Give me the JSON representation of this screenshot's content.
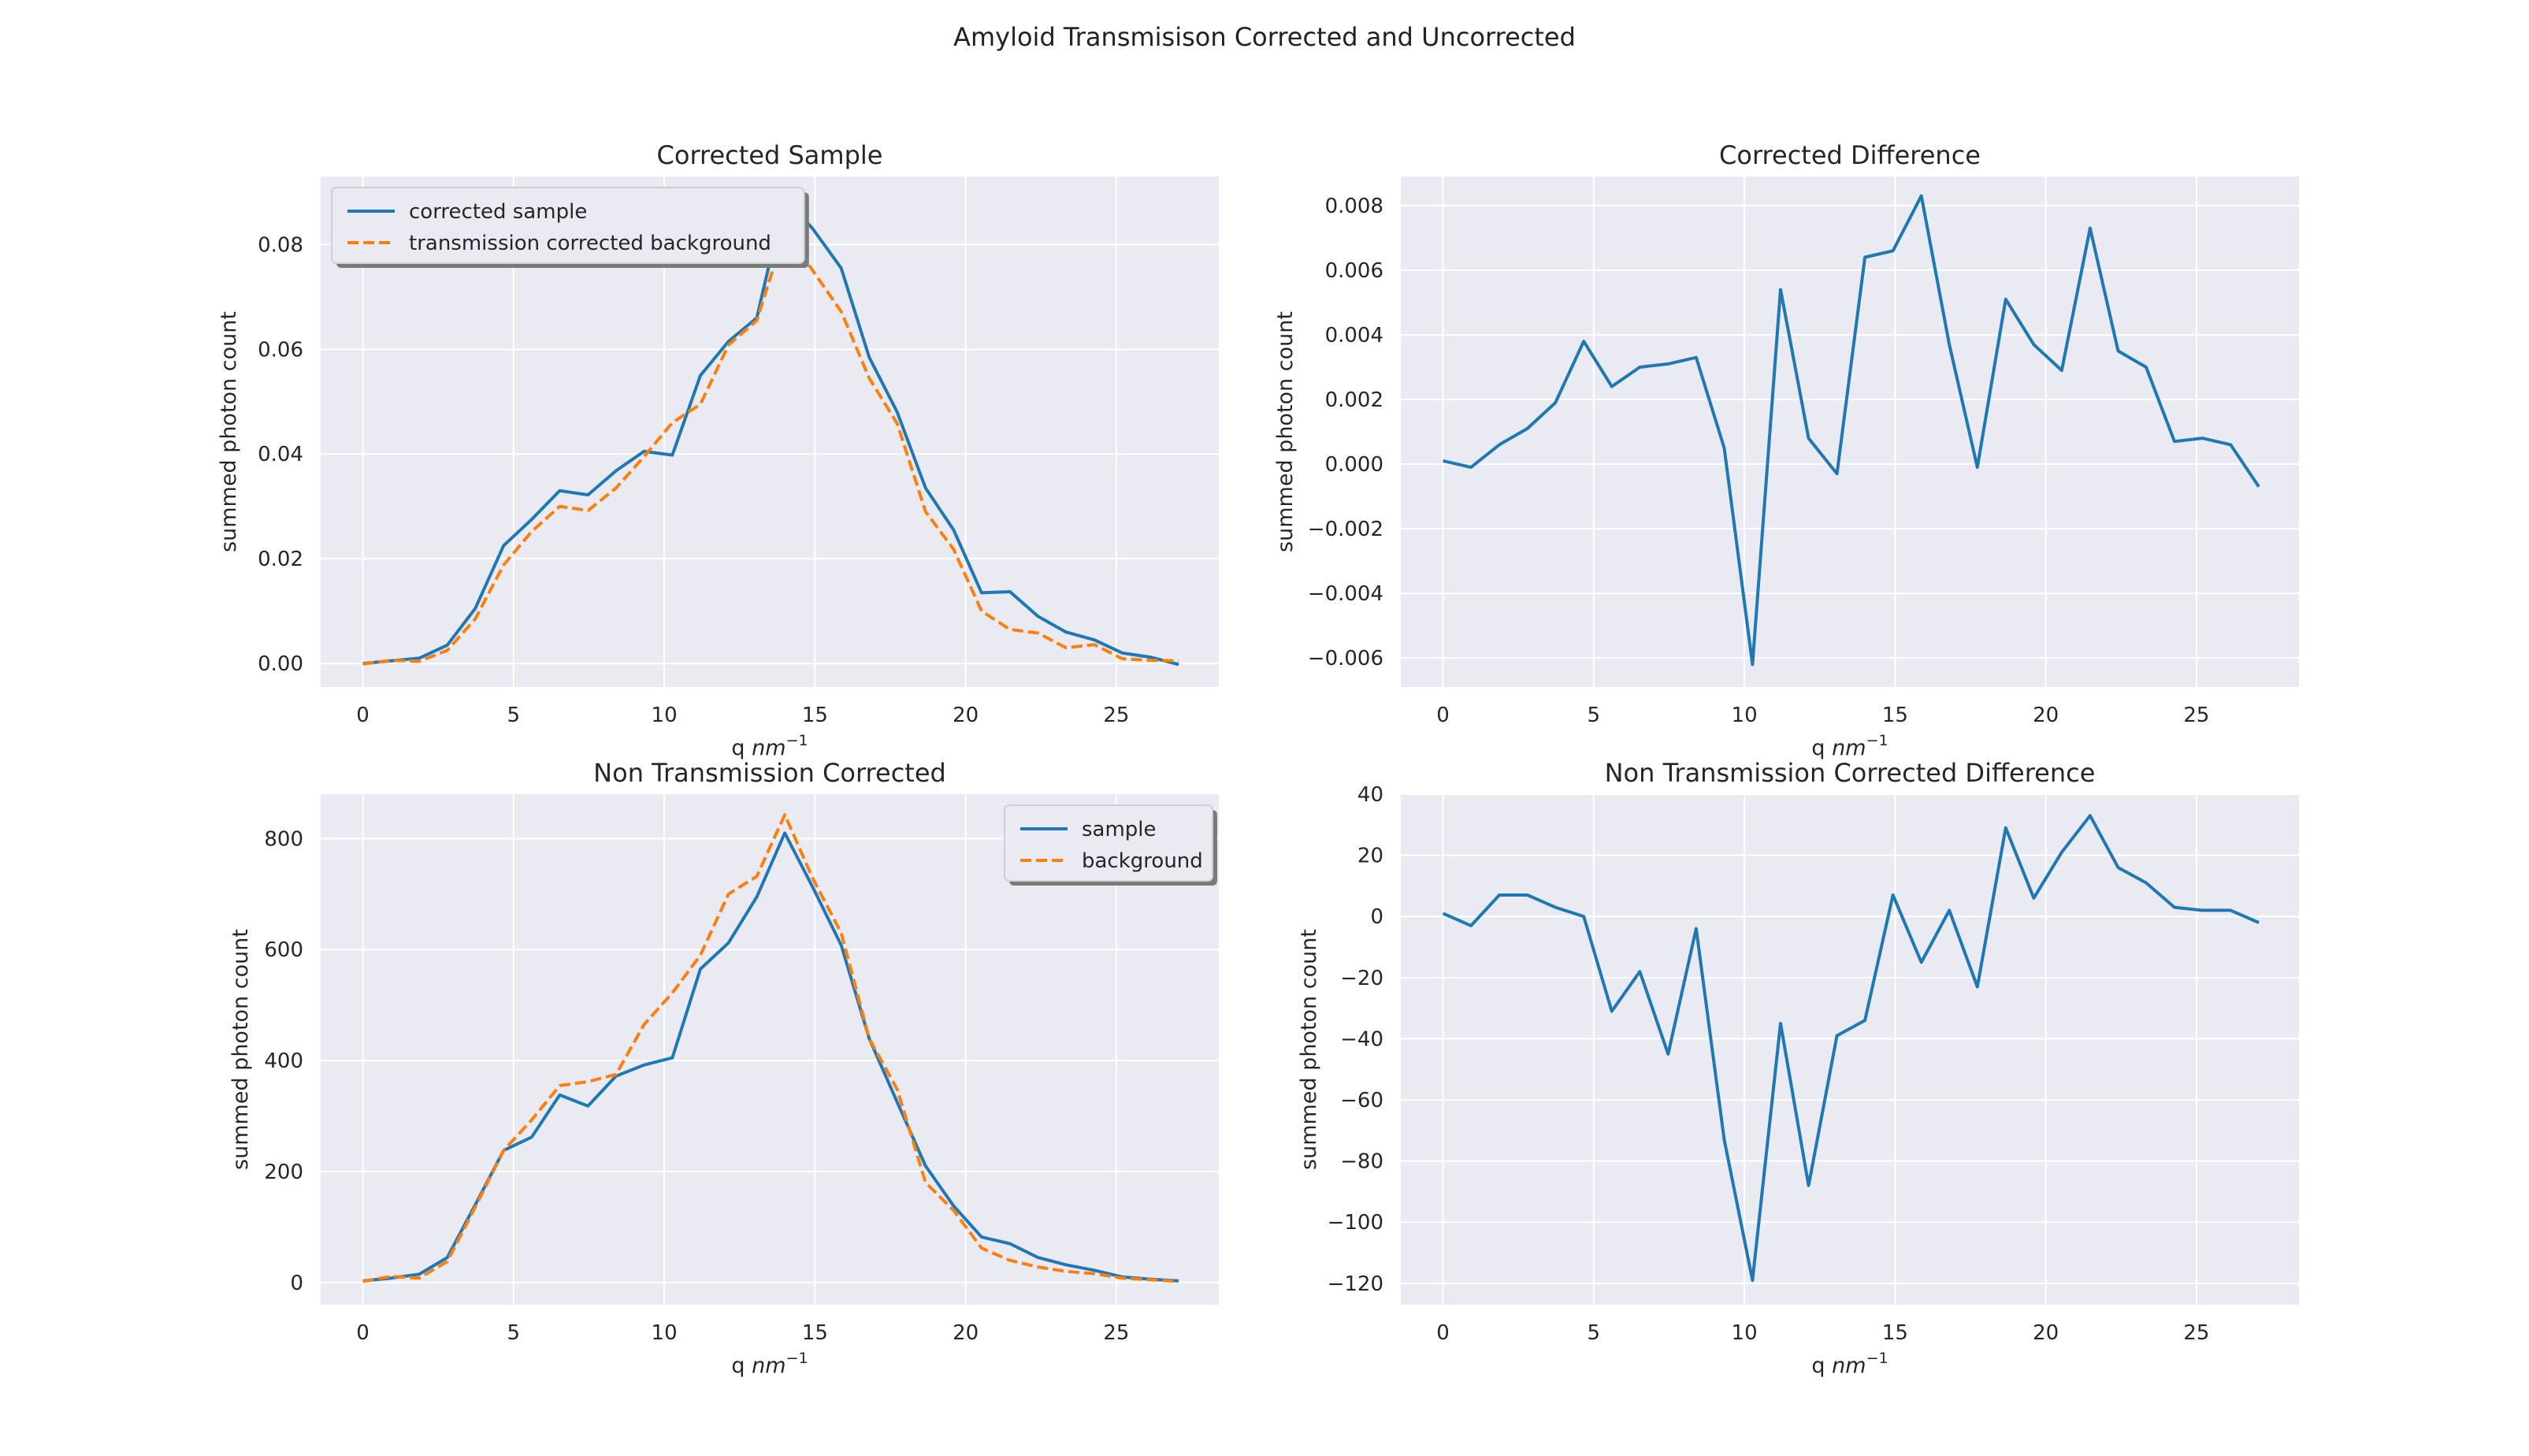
{
  "figure": {
    "title": "Amyloid Transmisison Corrected and Uncorrected"
  },
  "colors": {
    "plot_bg": "#eaeaf2",
    "grid": "#ffffff",
    "blue": "#1f77b4",
    "orange": "#ff7f0e"
  },
  "chart_data": [
    {
      "type": "line",
      "title": "Corrected Sample",
      "xlabel": "q nm",
      "xlabel_sup": "−1",
      "ylabel": "summed photon count",
      "xlim": [
        -1.4,
        28.4
      ],
      "ylim": [
        -0.0045,
        0.093
      ],
      "xticks": [
        0,
        5,
        10,
        15,
        20,
        25
      ],
      "yticks": [
        0.0,
        0.02,
        0.04,
        0.06,
        0.08
      ],
      "ytick_labels": [
        "0.00",
        "0.02",
        "0.04",
        "0.06",
        "0.08"
      ],
      "legend": "upper-left",
      "series": [
        {
          "name": "corrected sample",
          "color": "blue",
          "dash": false,
          "x": [
            0,
            0.93,
            1.87,
            2.8,
            3.73,
            4.67,
            5.6,
            6.53,
            7.47,
            8.4,
            9.33,
            10.27,
            11.2,
            12.13,
            13.07,
            14.0,
            14.93,
            15.87,
            16.8,
            17.73,
            18.67,
            19.6,
            20.53,
            21.47,
            22.4,
            23.33,
            24.27,
            25.2,
            26.13,
            27.07
          ],
          "y": [
            0.0,
            0.0005,
            0.001,
            0.0035,
            0.0105,
            0.0225,
            0.0275,
            0.033,
            0.0322,
            0.0368,
            0.0405,
            0.0398,
            0.055,
            0.0615,
            0.066,
            0.089,
            0.083,
            0.0755,
            0.0585,
            0.048,
            0.0335,
            0.0255,
            0.0135,
            0.0137,
            0.009,
            0.006,
            0.0045,
            0.002,
            0.0012,
            -0.0002
          ]
        },
        {
          "name": "transmission corrected background",
          "color": "orange",
          "dash": true,
          "x": [
            0,
            0.93,
            1.87,
            2.8,
            3.73,
            4.67,
            5.6,
            6.53,
            7.47,
            8.4,
            9.33,
            10.27,
            11.2,
            12.13,
            13.07,
            14.0,
            14.93,
            15.87,
            16.8,
            17.73,
            18.67,
            19.6,
            20.53,
            21.47,
            22.4,
            23.33,
            24.27,
            25.2,
            26.13,
            27.07
          ],
          "y": [
            -0.0001,
            0.0006,
            0.0004,
            0.0025,
            0.0085,
            0.0188,
            0.0252,
            0.03,
            0.0292,
            0.0335,
            0.0395,
            0.046,
            0.0495,
            0.0608,
            0.0655,
            0.0825,
            0.075,
            0.0672,
            0.0545,
            0.0458,
            0.029,
            0.0218,
            0.01,
            0.0065,
            0.0058,
            0.003,
            0.0036,
            0.0009,
            0.0006,
            0.0005
          ]
        }
      ]
    },
    {
      "type": "line",
      "title": "Corrected Difference",
      "xlabel": "q nm",
      "xlabel_sup": "−1",
      "ylabel": "summed photon count",
      "xlim": [
        -1.4,
        28.4
      ],
      "ylim": [
        -0.0069,
        0.0089
      ],
      "xticks": [
        0,
        5,
        10,
        15,
        20,
        25
      ],
      "yticks": [
        -0.006,
        -0.004,
        -0.002,
        0.0,
        0.002,
        0.004,
        0.006,
        0.008
      ],
      "ytick_labels": [
        "−0.006",
        "−0.004",
        "−0.002",
        "0.000",
        "0.002",
        "0.004",
        "0.006",
        "0.008"
      ],
      "legend": "none",
      "series": [
        {
          "color": "blue",
          "dash": false,
          "x": [
            0,
            0.93,
            1.87,
            2.8,
            3.73,
            4.67,
            5.6,
            6.53,
            7.47,
            8.4,
            9.33,
            10.27,
            11.2,
            12.13,
            13.07,
            14.0,
            14.93,
            15.87,
            16.8,
            17.73,
            18.67,
            19.6,
            20.53,
            21.47,
            22.4,
            23.33,
            24.27,
            25.2,
            26.13,
            27.07
          ],
          "y": [
            0.0001,
            -0.0001,
            0.0006,
            0.0011,
            0.0019,
            0.0038,
            0.0024,
            0.003,
            0.0031,
            0.0033,
            0.0005,
            -0.0062,
            0.0054,
            0.0008,
            -0.0003,
            0.0064,
            0.0066,
            0.0083,
            0.0037,
            -0.0001,
            0.0051,
            0.0037,
            0.0029,
            0.0073,
            0.0035,
            0.003,
            0.0007,
            0.0008,
            0.0006,
            -0.0007
          ]
        }
      ]
    },
    {
      "type": "line",
      "title": "Non Transmission Corrected",
      "xlabel": "q nm",
      "xlabel_sup": "−1",
      "ylabel": "summed photon count",
      "xlim": [
        -1.4,
        28.4
      ],
      "ylim": [
        -40,
        880
      ],
      "xticks": [
        0,
        5,
        10,
        15,
        20,
        25
      ],
      "yticks": [
        0,
        200,
        400,
        600,
        800
      ],
      "ytick_labels": [
        "0",
        "200",
        "400",
        "600",
        "800"
      ],
      "legend": "upper-right",
      "series": [
        {
          "name": "sample",
          "color": "blue",
          "dash": false,
          "x": [
            0,
            0.93,
            1.87,
            2.8,
            3.73,
            4.67,
            5.6,
            6.53,
            7.47,
            8.4,
            9.33,
            10.27,
            11.2,
            12.13,
            13.07,
            14.0,
            14.93,
            15.87,
            16.8,
            17.73,
            18.67,
            19.6,
            20.53,
            21.47,
            22.4,
            23.33,
            24.27,
            25.2,
            26.13,
            27.07
          ],
          "y": [
            3,
            8,
            15,
            45,
            140,
            238,
            262,
            338,
            318,
            372,
            392,
            405,
            565,
            612,
            695,
            810,
            712,
            608,
            440,
            325,
            210,
            138,
            82,
            70,
            45,
            32,
            22,
            10,
            6,
            3
          ]
        },
        {
          "name": "background",
          "color": "orange",
          "dash": true,
          "x": [
            0,
            0.93,
            1.87,
            2.8,
            3.73,
            4.67,
            5.6,
            6.53,
            7.47,
            8.4,
            9.33,
            10.27,
            11.2,
            12.13,
            13.07,
            14.0,
            14.93,
            15.87,
            16.8,
            17.73,
            18.67,
            19.6,
            20.53,
            21.47,
            22.4,
            23.33,
            24.27,
            25.2,
            26.13,
            27.07
          ],
          "y": [
            2,
            11,
            8,
            38,
            136,
            238,
            293,
            355,
            362,
            375,
            465,
            522,
            590,
            700,
            732,
            843,
            728,
            630,
            440,
            348,
            180,
            130,
            62,
            40,
            28,
            20,
            16,
            8,
            5,
            2
          ]
        }
      ]
    },
    {
      "type": "line",
      "title": "Non Transmission Corrected Difference",
      "xlabel": "q nm",
      "xlabel_sup": "−1",
      "ylabel": "summed photon count",
      "xlim": [
        -1.4,
        28.4
      ],
      "ylim": [
        -127,
        40
      ],
      "xticks": [
        0,
        5,
        10,
        15,
        20,
        25
      ],
      "yticks": [
        -120,
        -100,
        -80,
        -60,
        -40,
        -20,
        0,
        20,
        40
      ],
      "ytick_labels": [
        "−120",
        "−100",
        "−80",
        "−60",
        "−40",
        "−20",
        "0",
        "20",
        "40"
      ],
      "legend": "none",
      "series": [
        {
          "color": "blue",
          "dash": false,
          "x": [
            0,
            0.93,
            1.87,
            2.8,
            3.73,
            4.67,
            5.6,
            6.53,
            7.47,
            8.4,
            9.33,
            10.27,
            11.2,
            12.13,
            13.07,
            14.0,
            14.93,
            15.87,
            16.8,
            17.73,
            18.67,
            19.6,
            20.53,
            21.47,
            22.4,
            23.33,
            24.27,
            25.2,
            26.13,
            27.07
          ],
          "y": [
            1,
            -3,
            7,
            7,
            3,
            0,
            -31,
            -18,
            -45,
            -4,
            -73,
            -119,
            -35,
            -88,
            -39,
            -34,
            7,
            -15,
            2,
            -23,
            29,
            6,
            21,
            33,
            16,
            11,
            3,
            2,
            2,
            -2
          ]
        }
      ]
    }
  ]
}
